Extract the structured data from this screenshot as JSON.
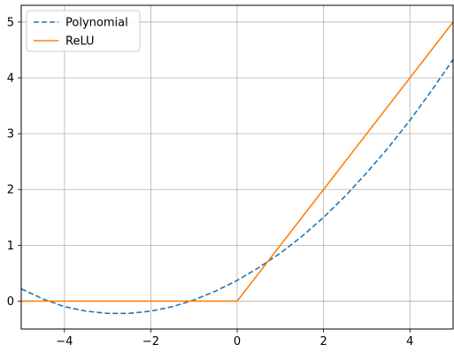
{
  "chart_data": {
    "type": "line",
    "title": "",
    "xlabel": "",
    "ylabel": "",
    "xlim": [
      -5,
      5
    ],
    "ylim": [
      -0.5,
      5.3
    ],
    "grid": true,
    "legend_position": "top-left",
    "x_ticks": [
      -4,
      -2,
      0,
      2,
      4
    ],
    "x_tick_labels": [
      "−4",
      "−2",
      "0",
      "2",
      "4"
    ],
    "y_ticks": [
      0,
      1,
      2,
      3,
      4,
      5
    ],
    "y_tick_labels": [
      "0",
      "1",
      "2",
      "3",
      "4",
      "5"
    ],
    "series": [
      {
        "name": "Polynomial",
        "style": "dashed",
        "color": "#1f77b4",
        "x": [
          -5,
          -4.5,
          -4,
          -3.5,
          -3,
          -2.5,
          -2,
          -1.5,
          -1,
          -0.5,
          0,
          0.5,
          1,
          1.5,
          2,
          2.5,
          3,
          3.5,
          4,
          4.5,
          5
        ],
        "y": [
          0.22,
          0.04,
          -0.1,
          -0.18,
          -0.22,
          -0.22,
          -0.18,
          -0.1,
          0.02,
          0.18,
          0.37,
          0.6,
          0.86,
          1.16,
          1.5,
          1.88,
          2.3,
          2.75,
          3.24,
          3.77,
          4.33
        ]
      },
      {
        "name": "ReLU",
        "style": "solid",
        "color": "#ff7f0e",
        "x": [
          -5,
          0,
          5
        ],
        "y": [
          0,
          0,
          5
        ]
      }
    ]
  }
}
